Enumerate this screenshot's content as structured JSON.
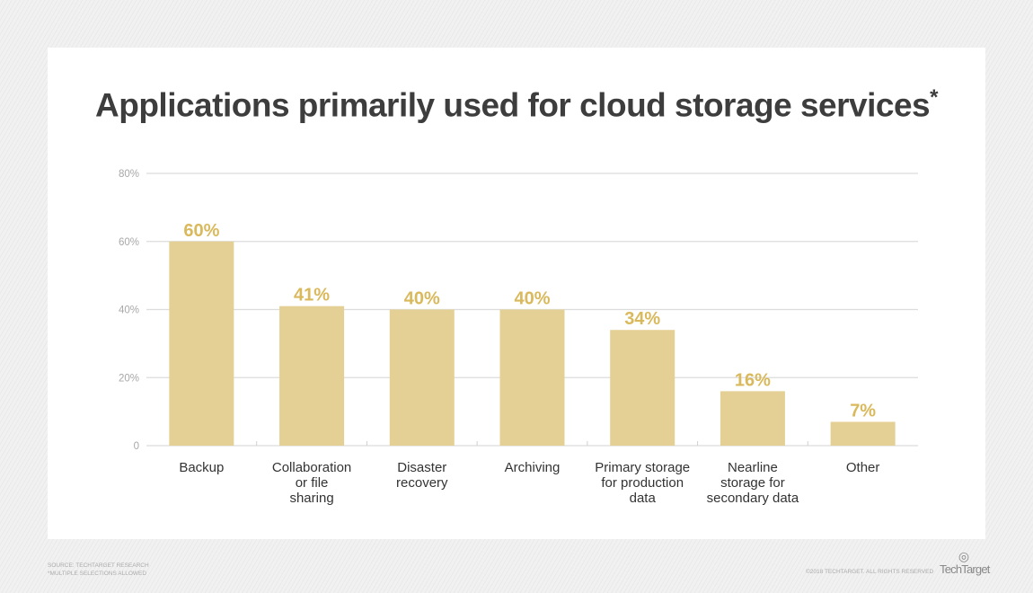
{
  "chart_data": {
    "type": "bar",
    "title": "Applications primarily used for cloud storage services",
    "title_mark": "*",
    "categories": [
      [
        "Backup"
      ],
      [
        "Collaboration",
        "or file",
        "sharing"
      ],
      [
        "Disaster",
        "recovery"
      ],
      [
        "Archiving"
      ],
      [
        "Primary storage",
        "for production",
        "data"
      ],
      [
        "Nearline",
        "storage for",
        "secondary data"
      ],
      [
        "Other"
      ]
    ],
    "values": [
      60,
      41,
      40,
      40,
      34,
      16,
      7
    ],
    "data_labels": [
      "60%",
      "41%",
      "40%",
      "40%",
      "34%",
      "16%",
      "7%"
    ],
    "ylim": [
      0,
      80
    ],
    "yticks": [
      0,
      20,
      40,
      60,
      80
    ],
    "ytick_labels": [
      "0",
      "20%",
      "40%",
      "60%",
      "80%"
    ],
    "grid": true,
    "bar_color": "#e4d094",
    "label_color": "#d9b95c"
  },
  "footer": {
    "source": "SOURCE: TECHTARGET RESEARCH",
    "note": "*MULTIPLE SELECTIONS ALLOWED",
    "copyright": "©2018 TECHTARGET. ALL RIGHTS RESERVED",
    "logo": "TechTarget"
  }
}
